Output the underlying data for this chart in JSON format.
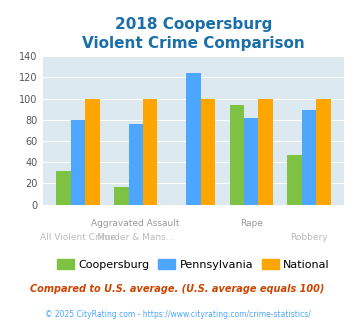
{
  "title_line1": "2018 Coopersburg",
  "title_line2": "Violent Crime Comparison",
  "groups": [
    {
      "name": "All Violent Crime",
      "coopersburg": 32,
      "pennsylvania": 80,
      "national": 100
    },
    {
      "name": "Aggravated Assault",
      "coopersburg": 17,
      "pennsylvania": 76,
      "national": 100
    },
    {
      "name": "Murder & Mans...",
      "coopersburg": 0,
      "pennsylvania": 124,
      "national": 100
    },
    {
      "name": "Rape",
      "coopersburg": 94,
      "pennsylvania": 82,
      "national": 100
    },
    {
      "name": "Robbery",
      "coopersburg": 47,
      "pennsylvania": 89,
      "national": 100
    }
  ],
  "color_coopersburg": "#7dc242",
  "color_pennsylvania": "#4da6ff",
  "color_national": "#ffa500",
  "ylim": [
    0,
    140
  ],
  "yticks": [
    0,
    20,
    40,
    60,
    80,
    100,
    120,
    140
  ],
  "background_plot": "#dce9f0",
  "background_fig": "#ffffff",
  "title_color": "#1a6fa8",
  "xlabel_top_color": "#999999",
  "xlabel_bot_color": "#bbbbbb",
  "footnote1": "Compared to U.S. average. (U.S. average equals 100)",
  "footnote2": "© 2025 CityRating.com - https://www.cityrating.com/crime-statistics/",
  "footnote1_color": "#cc4400",
  "footnote2_color": "#4da6ff",
  "legend_labels": [
    "Coopersburg",
    "Pennsylvania",
    "National"
  ],
  "label_top": [
    "",
    "Aggravated Assault",
    "",
    "Rape",
    ""
  ],
  "label_bot": [
    "All Violent Crime",
    "Murder & Mans...",
    "",
    "",
    "Robbery"
  ]
}
